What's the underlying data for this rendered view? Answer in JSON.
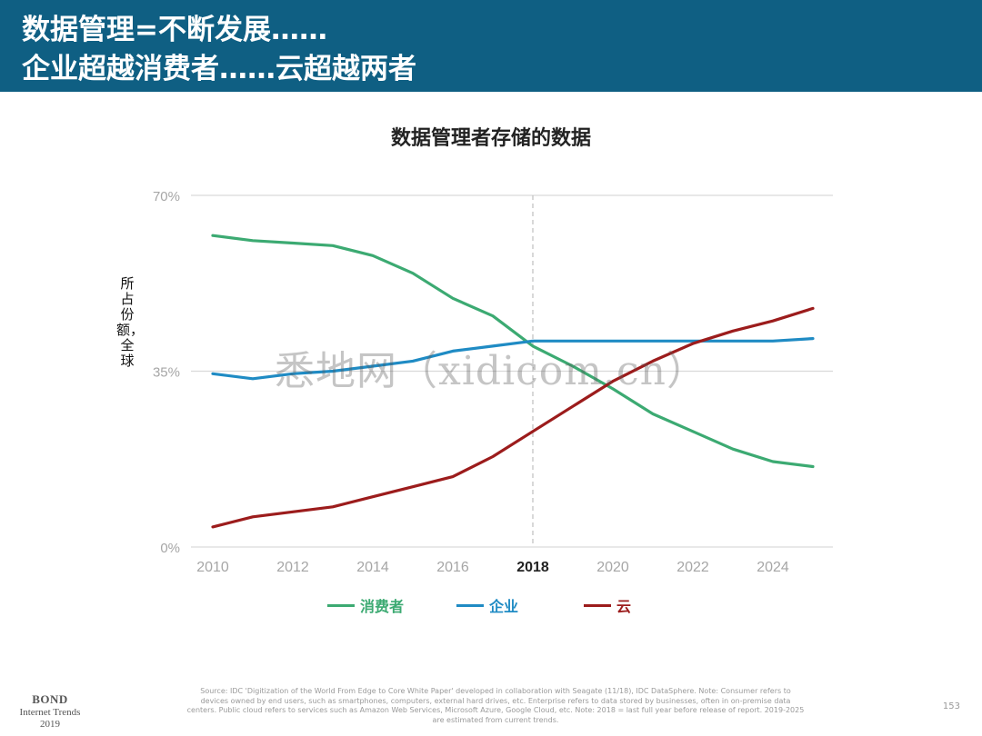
{
  "header": {
    "line1": "数据管理=不断发展……",
    "line2": "企业超越消费者……云超越两者"
  },
  "colors": {
    "banner": "#0f5f83",
    "consumer": "#3caa72",
    "enterprise": "#1f8bc4",
    "cloud": "#9c1c1c"
  },
  "chart_data": {
    "type": "line",
    "title": "数据管理者存储的数据",
    "ylabel": "所占份额，全球",
    "xlabel": "",
    "ylim": [
      0,
      70
    ],
    "yticks": [
      "0%",
      "35%",
      "70%"
    ],
    "xticks": [
      "2010",
      "2012",
      "2014",
      "2016",
      "2018",
      "2020",
      "2022",
      "2024"
    ],
    "highlight_x": "2018",
    "grid": "horizontal",
    "legend_position": "bottom",
    "x": [
      2010,
      2011,
      2012,
      2013,
      2014,
      2015,
      2016,
      2017,
      2018,
      2019,
      2020,
      2021,
      2022,
      2023,
      2024,
      2025
    ],
    "series": [
      {
        "name": "消费者",
        "values": [
          62,
          61,
          60.5,
          60,
          58,
          54.5,
          49.5,
          46,
          40,
          36,
          31.5,
          26.5,
          23,
          19.5,
          17,
          16
        ]
      },
      {
        "name": "企业",
        "values": [
          34.5,
          33.5,
          34.5,
          35,
          36,
          37,
          39,
          40,
          41,
          41,
          41,
          41,
          41,
          41,
          41,
          41.5
        ]
      },
      {
        "name": "云",
        "values": [
          4,
          6,
          7,
          8,
          10,
          12,
          14,
          18,
          23,
          28,
          33,
          37,
          40.5,
          43,
          45,
          47.5
        ]
      }
    ]
  },
  "source_note": "Source: IDC 'Digitization of the World From Edge to Core White Paper' developed in collaboration with Seagate (11/18), IDC DataSphere. Note: Consumer refers to devices owned by end users, such as smartphones, computers, external hard drives, etc. Enterprise refers to data stored by businesses, often in on-premise data centers. Public cloud refers to services such as Amazon Web Services, Microsoft Azure, Google Cloud, etc. Note: 2018 = last full year before release of report. 2019-2025 are estimated from current trends.",
  "footer": {
    "brand": "BOND",
    "subtitle": "Internet Trends",
    "year": "2019",
    "page_number": "153"
  },
  "watermark_text": "悉地网（xidicom.cn）"
}
